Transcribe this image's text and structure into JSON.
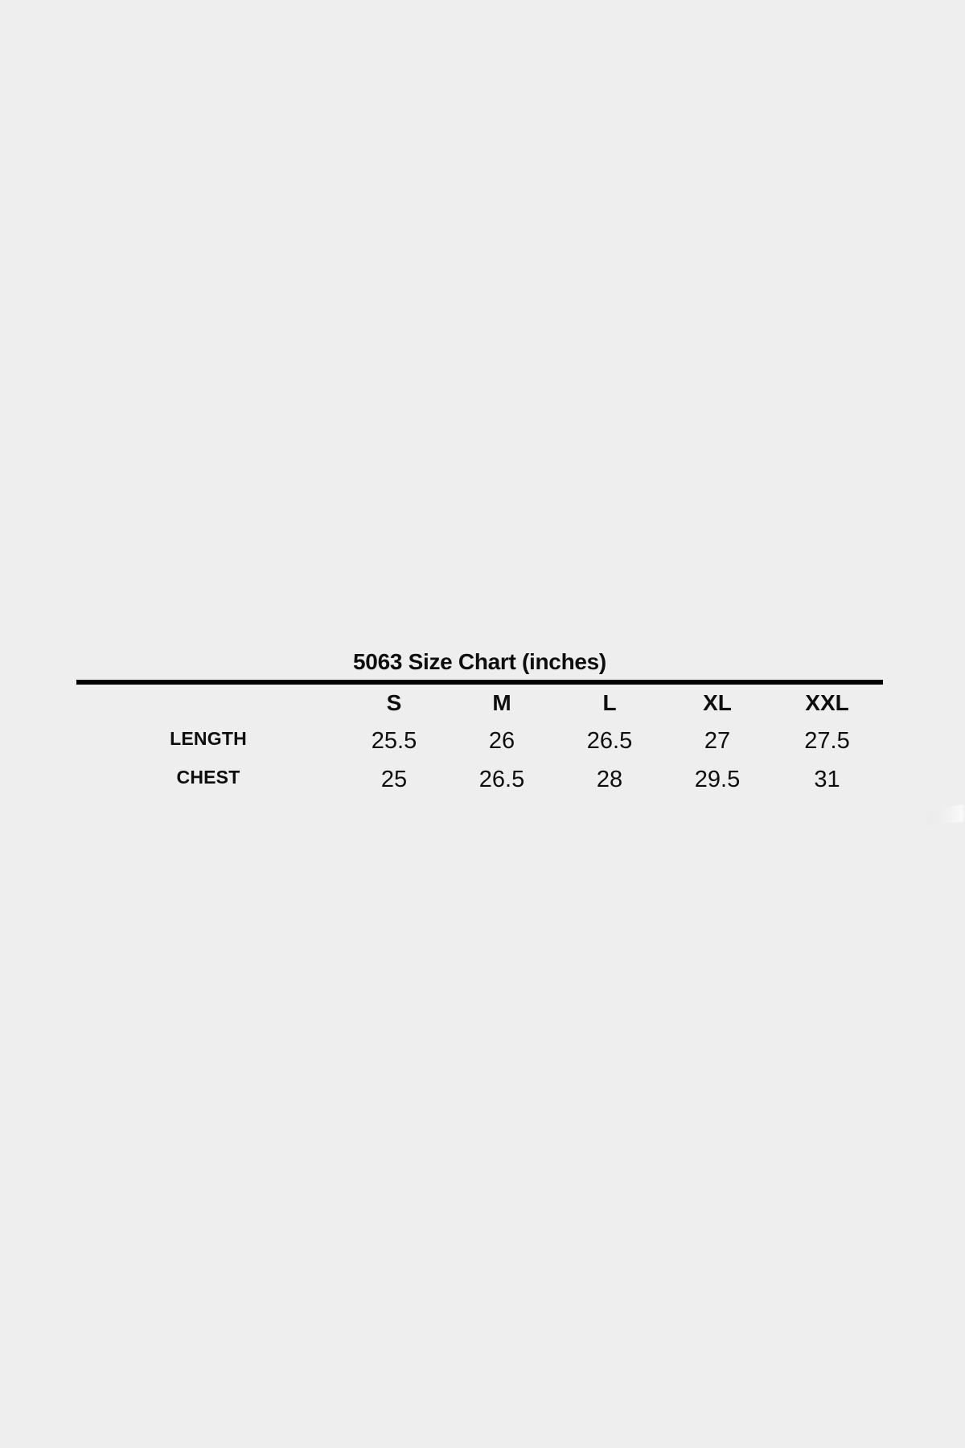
{
  "page": {
    "background_color": "#eeeeee",
    "text_color": "#0e0e0e",
    "rule_color": "#000000"
  },
  "chart_data": {
    "type": "table",
    "title": "5063 Size Chart (inches)",
    "columns": [
      "S",
      "M",
      "L",
      "XL",
      "XXL"
    ],
    "rows": [
      {
        "label": "LENGTH",
        "values": [
          "25.5",
          "26",
          "26.5",
          "27",
          "27.5"
        ]
      },
      {
        "label": "CHEST",
        "values": [
          "25",
          "26.5",
          "28",
          "29.5",
          "31"
        ]
      }
    ]
  }
}
